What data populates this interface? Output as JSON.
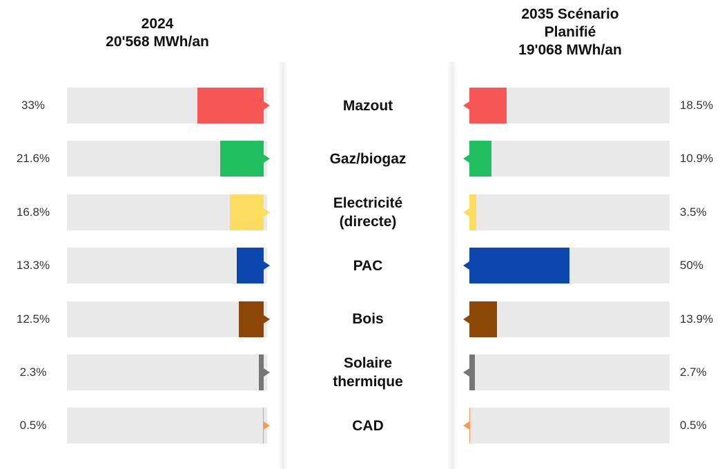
{
  "chart_data": {
    "type": "bar",
    "orientation": "horizontal",
    "categories": [
      "Mazout",
      "Gaz/biogaz",
      "Electricité (directe)",
      "PAC",
      "Bois",
      "Solaire thermique",
      "CAD"
    ],
    "colors": [
      "#f75656",
      "#1fbf5f",
      "#fcdd60",
      "#0c47ae",
      "#8a4706",
      "#767676",
      "#f59a5c"
    ],
    "xlim": [
      0,
      100
    ],
    "series": [
      {
        "name": "2024",
        "subtitle": "20'568 MWh/an",
        "values": [
          33,
          21.6,
          16.8,
          13.3,
          12.5,
          2.3,
          0.5
        ],
        "value_labels": [
          "33%",
          "21.6%",
          "16.8%",
          "13.3%",
          "12.5%",
          "2.3%",
          "0.5%"
        ]
      },
      {
        "name": "2035 Scénario Planifié",
        "subtitle": "19'068 MWh/an",
        "values": [
          18.5,
          10.9,
          3.5,
          50,
          13.9,
          2.7,
          0.5
        ],
        "value_labels": [
          "18.5%",
          "10.9%",
          "3.5%",
          "50%",
          "13.9%",
          "2.7%",
          "0.5%"
        ]
      }
    ]
  }
}
